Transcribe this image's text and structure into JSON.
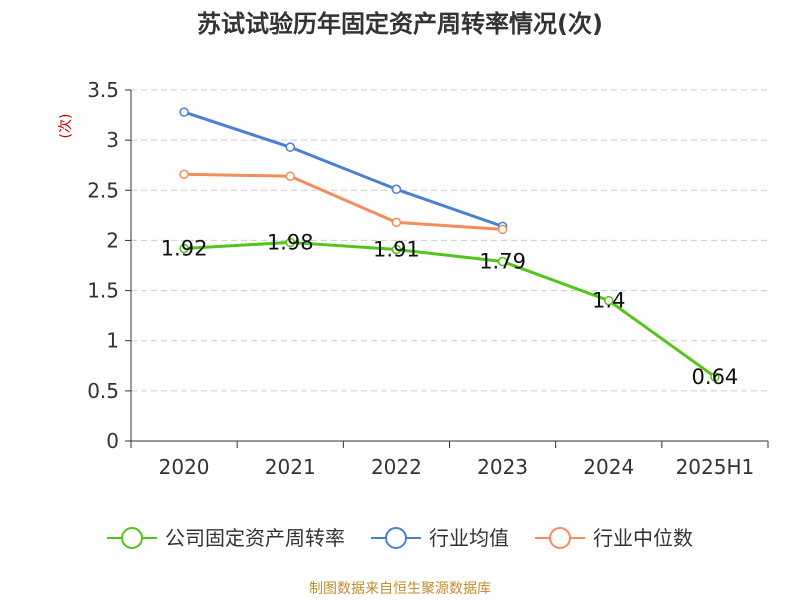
{
  "chart_data": {
    "type": "line",
    "title": "苏试试验历年固定资产周转率情况(次)",
    "ylabel": "(次)",
    "categories": [
      "2020",
      "2021",
      "2022",
      "2023",
      "2024",
      "2025H1"
    ],
    "yticks": [
      "0",
      "0.5",
      "1",
      "1.5",
      "2",
      "2.5",
      "3",
      "3.5"
    ],
    "ylim": [
      0,
      3.5
    ],
    "grid": true,
    "legend_position": "bottom",
    "series": [
      {
        "name": "公司固定资产周转率",
        "color": "#52c41a",
        "values": [
          1.92,
          1.98,
          1.91,
          1.79,
          1.4,
          0.64
        ],
        "labels": [
          "1.92",
          "1.98",
          "1.91",
          "1.79",
          "1.4",
          "0.64"
        ]
      },
      {
        "name": "行业均值",
        "color": "#4a7fd6",
        "values": [
          3.28,
          2.93,
          2.51,
          2.14,
          null,
          null
        ]
      },
      {
        "name": "行业中位数",
        "color": "#f58c5b",
        "values": [
          2.66,
          2.64,
          2.18,
          2.11,
          null,
          null
        ]
      }
    ],
    "source": "制图数据来自恒生聚源数据库"
  }
}
